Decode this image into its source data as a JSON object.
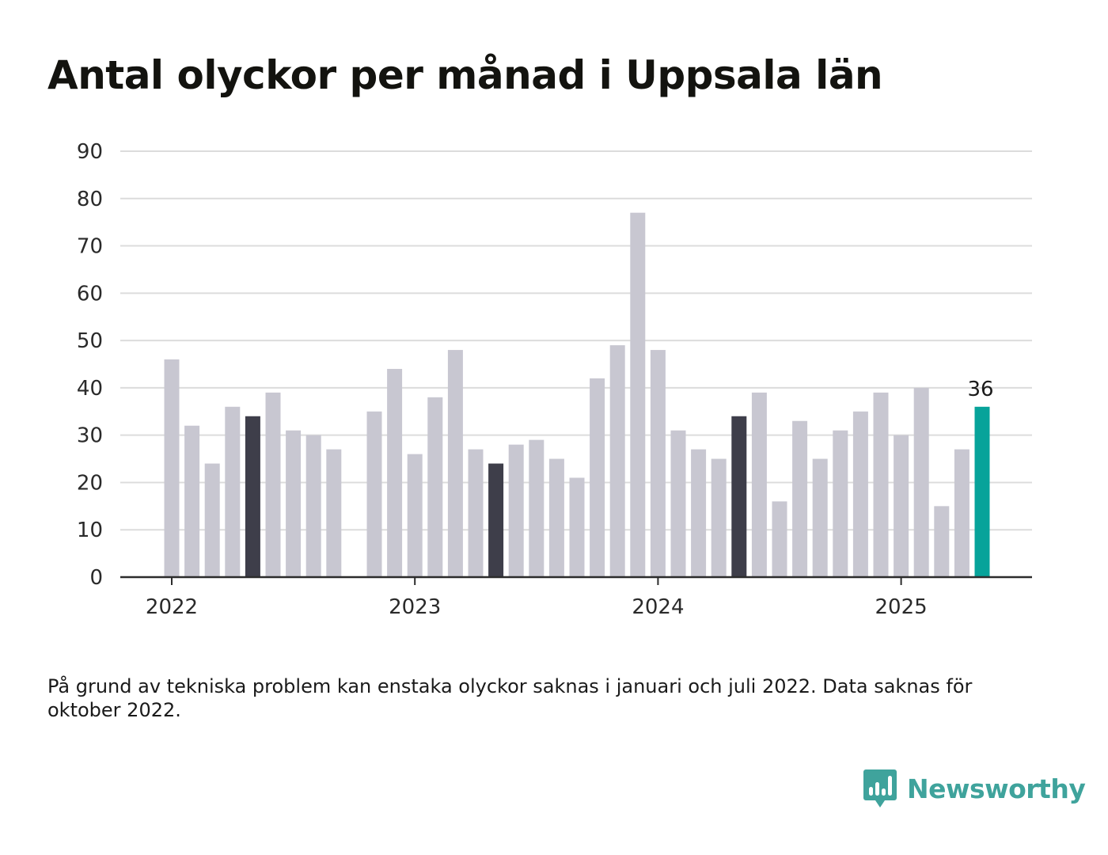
{
  "header": {
    "title": "Antal olyckor per månad i Uppsala län"
  },
  "footer": {
    "note": "På grund av tekniska problem kan enstaka olyckor saknas i januari och juli 2022. Data saknas för oktober 2022.",
    "brand": "Newsworthy"
  },
  "colors": {
    "bar_default": "#c8c7d1",
    "bar_highlight": "#3e3e4a",
    "bar_latest": "#07a39a",
    "gridline": "#dcdcdc",
    "axis": "#2c2c2c",
    "brand": "#3fa39c"
  },
  "icons": {
    "brand_logo": "newsworthy-logo-icon"
  },
  "chart_data": {
    "type": "bar",
    "title": "Antal olyckor per månad i Uppsala län",
    "xlabel": "",
    "ylabel": "",
    "ylim": [
      0,
      90
    ],
    "yticks": [
      "0",
      "10",
      "20",
      "30",
      "40",
      "50",
      "60",
      "70",
      "80",
      "90"
    ],
    "grid": true,
    "x_axis_labels": [
      {
        "label": "2022",
        "month": "2022-01"
      },
      {
        "label": "2023",
        "month": "2023-01"
      },
      {
        "label": "2024",
        "month": "2024-01"
      },
      {
        "label": "2025",
        "month": "2025-01"
      }
    ],
    "categories": [
      "2022-01",
      "2022-02",
      "2022-03",
      "2022-04",
      "2022-05",
      "2022-06",
      "2022-07",
      "2022-08",
      "2022-09",
      "2022-10",
      "2022-11",
      "2022-12",
      "2023-01",
      "2023-02",
      "2023-03",
      "2023-04",
      "2023-05",
      "2023-06",
      "2023-07",
      "2023-08",
      "2023-09",
      "2023-10",
      "2023-11",
      "2023-12",
      "2024-01",
      "2024-02",
      "2024-03",
      "2024-04",
      "2024-05",
      "2024-06",
      "2024-07",
      "2024-08",
      "2024-09",
      "2024-10",
      "2024-11",
      "2024-12",
      "2025-01",
      "2025-02",
      "2025-03",
      "2025-04",
      "2025-05"
    ],
    "values": [
      46,
      32,
      24,
      36,
      34,
      39,
      31,
      30,
      27,
      null,
      35,
      44,
      26,
      38,
      48,
      27,
      24,
      28,
      29,
      25,
      21,
      42,
      49,
      77,
      48,
      31,
      27,
      25,
      34,
      39,
      16,
      33,
      25,
      31,
      35,
      39,
      30,
      40,
      15,
      27,
      36
    ],
    "highlighted": [
      "2022-05",
      "2023-05",
      "2024-05"
    ],
    "latest": "2025-05",
    "annotations": [
      {
        "month": "2025-05",
        "text": "36"
      }
    ]
  }
}
